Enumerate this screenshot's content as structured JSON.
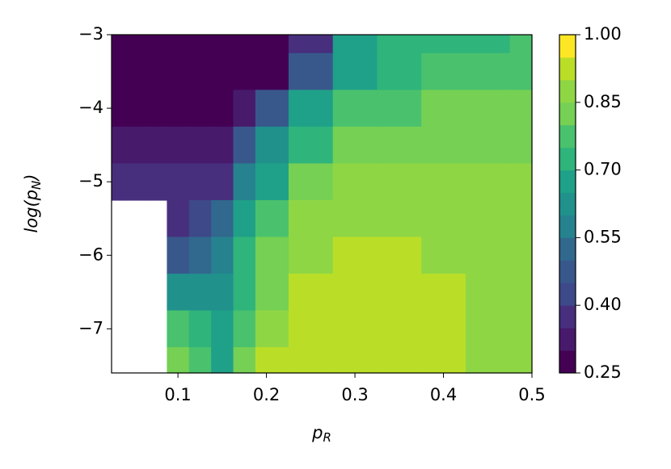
{
  "chart_data": {
    "type": "contour",
    "xlabel": [
      "p",
      "R"
    ],
    "ylabel": [
      "log(p",
      "N",
      ")"
    ],
    "x": [
      0.025,
      0.05,
      0.075,
      0.1,
      0.125,
      0.15,
      0.175,
      0.2,
      0.25,
      0.3,
      0.35,
      0.4,
      0.45,
      0.5
    ],
    "y": [
      -3,
      -3.5,
      -4,
      -4.5,
      -5,
      -5.5,
      -6,
      -6.5,
      -7,
      -7.5
    ],
    "z": [
      [
        0.27,
        0.27,
        0.27,
        0.27,
        0.27,
        0.27,
        0.27,
        0.28,
        0.35,
        0.65,
        0.7,
        0.72,
        0.73,
        0.75
      ],
      [
        0.27,
        0.27,
        0.27,
        0.27,
        0.27,
        0.27,
        0.27,
        0.28,
        0.45,
        0.68,
        0.74,
        0.76,
        0.77,
        0.78
      ],
      [
        0.28,
        0.28,
        0.28,
        0.28,
        0.28,
        0.28,
        0.33,
        0.45,
        0.65,
        0.75,
        0.78,
        0.8,
        0.8,
        0.81
      ],
      [
        0.3,
        0.3,
        0.3,
        0.3,
        0.3,
        0.33,
        0.45,
        0.62,
        0.74,
        0.8,
        0.82,
        0.84,
        0.83,
        0.84
      ],
      [
        0.35,
        0.35,
        0.35,
        0.35,
        0.35,
        0.38,
        0.55,
        0.68,
        0.8,
        0.86,
        0.86,
        0.87,
        0.86,
        0.85
      ],
      [
        null,
        null,
        null,
        0.38,
        0.42,
        0.5,
        0.65,
        0.78,
        0.86,
        0.87,
        0.87,
        0.87,
        0.87,
        0.87
      ],
      [
        null,
        null,
        null,
        0.45,
        0.5,
        0.55,
        0.7,
        0.8,
        0.86,
        0.91,
        0.9,
        0.88,
        0.87,
        0.87
      ],
      [
        null,
        null,
        null,
        0.6,
        0.6,
        0.6,
        0.72,
        0.82,
        0.9,
        0.91,
        0.91,
        0.9,
        0.88,
        0.87
      ],
      [
        null,
        null,
        null,
        0.75,
        0.7,
        0.65,
        0.78,
        0.88,
        0.91,
        0.92,
        0.91,
        0.91,
        0.88,
        0.87
      ],
      [
        null,
        null,
        null,
        0.8,
        0.75,
        0.68,
        0.8,
        0.9,
        0.91,
        0.91,
        0.91,
        0.9,
        0.88,
        0.87
      ]
    ],
    "xlim": [
      0.025,
      0.5
    ],
    "ylim": [
      -7.6,
      -3
    ],
    "xticks": [
      0.1,
      0.2,
      0.3,
      0.4,
      0.5
    ],
    "yticks": [
      {
        "value": -3,
        "label": "−3"
      },
      {
        "value": -4,
        "label": "−4"
      },
      {
        "value": -5,
        "label": "−5"
      },
      {
        "value": -6,
        "label": "−6"
      },
      {
        "value": -7,
        "label": "−7"
      }
    ],
    "levels": [
      0.25,
      0.3,
      0.35,
      0.4,
      0.45,
      0.5,
      0.55,
      0.6,
      0.65,
      0.7,
      0.75,
      0.8,
      0.85,
      0.9,
      0.95,
      1
    ],
    "colormap": [
      "#440154",
      "#481a6c",
      "#472f7d",
      "#3e4989",
      "#38588c",
      "#31688e",
      "#26828e",
      "#21918c",
      "#1fa088",
      "#2fb47c",
      "#4ac16d",
      "#75d054",
      "#8fd645",
      "#bade28",
      "#fde725"
    ],
    "colorbar_ticks": [
      0.25,
      {
        "value": 0.4,
        "label": "0.40"
      },
      0.55,
      {
        "value": 0.7,
        "label": "0.70"
      },
      0.85,
      {
        "value": 1,
        "label": "1.00"
      }
    ]
  }
}
